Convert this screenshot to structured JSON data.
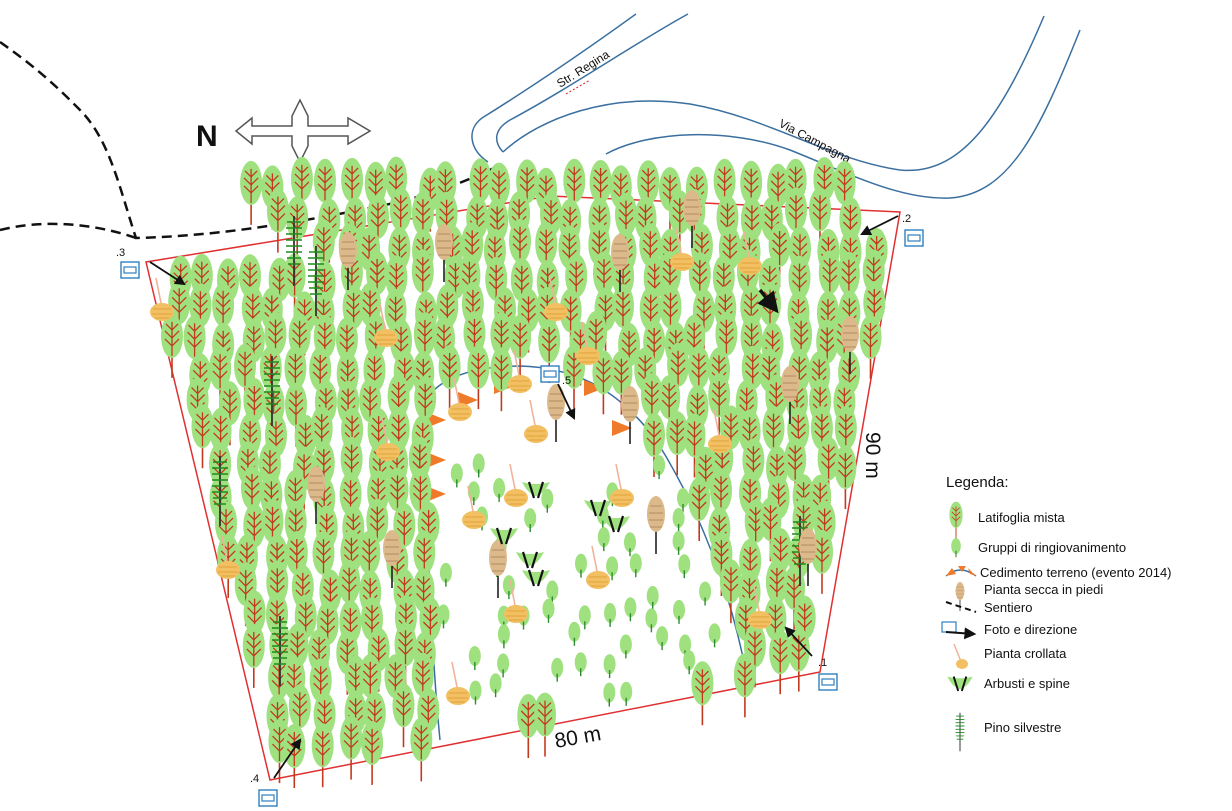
{
  "map": {
    "north_letter": "N",
    "roads": [
      {
        "name": "Str. Regina"
      },
      {
        "name": "Via Campagna"
      }
    ],
    "dimensions": {
      "bottom_side": "80 m",
      "right_side": "90 m"
    },
    "photo_points": [
      {
        "number": ".1"
      },
      {
        "number": ".2"
      },
      {
        "number": ".3"
      },
      {
        "number": ".4"
      },
      {
        "number": ".5"
      }
    ],
    "legend": {
      "title": "Legenda:",
      "items": [
        {
          "label": "Latifoglia mista",
          "icon": "broadleaf-tree-icon"
        },
        {
          "label": "Gruppi di ringiovanimento",
          "icon": "young-tree-icon"
        },
        {
          "label": "Cedimento terreno (evento 2014)",
          "icon": "landslide-icon"
        },
        {
          "label": "Pianta secca in piedi",
          "icon": "dead-tree-icon"
        },
        {
          "label": "Sentiero",
          "icon": "trail-icon"
        },
        {
          "label": "Foto e direzione",
          "icon": "camera-arrow-icon"
        },
        {
          "label": "Pianta crollata",
          "icon": "fallen-tree-icon"
        },
        {
          "label": "Arbusti e spine",
          "icon": "shrub-icon"
        },
        {
          "label": "Pino silvestre",
          "icon": "pine-icon"
        }
      ]
    },
    "colors": {
      "boundary": "#e03030",
      "road": "#3a6f9f",
      "tree_crown": "#9fe07f",
      "tree_trunk": "#c23a1e",
      "dead_tree": "#dcb98a",
      "fallen_tree": "#f2c063",
      "landslide": "#ef7a2a",
      "pine": "#1e6a1e",
      "shrub": "#2d7a2d",
      "photo": "#2f7fc0"
    }
  }
}
